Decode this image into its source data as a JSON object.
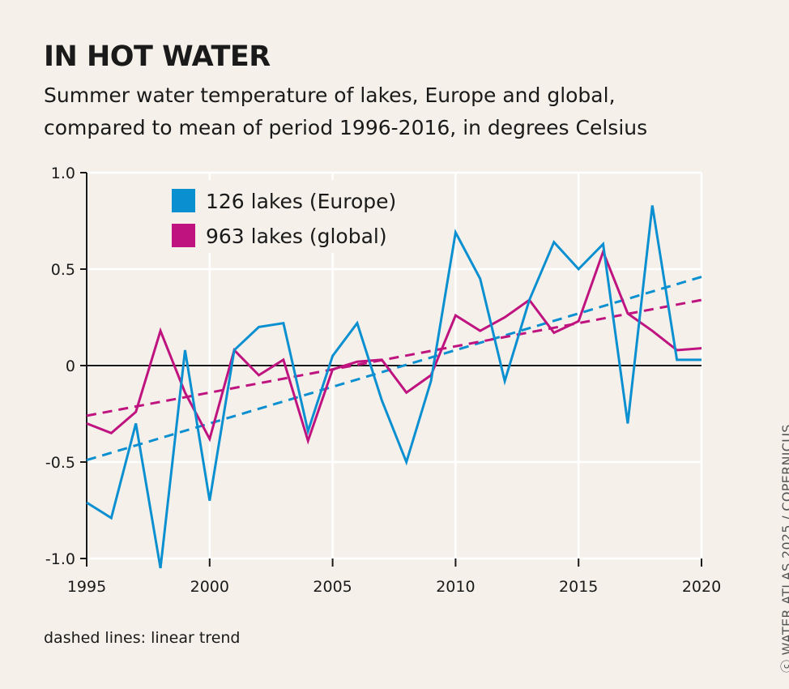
{
  "title": "IN HOT WATER",
  "subtitle_line1": "Summer water temperature of lakes, Europe and global,",
  "subtitle_line2": "compared to mean of period 1996-2016, in degrees Celsius",
  "note": "dashed lines: linear trend",
  "credit": "ⓒ WATER ATLAS 2025 / COPERNICUS",
  "chart_data": {
    "type": "line",
    "title": "IN HOT WATER",
    "xlim": [
      1995,
      2020
    ],
    "ylim": [
      -1.0,
      1.0
    ],
    "x_ticks": [
      "1995",
      "2000",
      "2005",
      "2010",
      "2015",
      "2020"
    ],
    "y_ticks": [
      "1.0",
      "0.5",
      "0",
      "-0.5",
      "-1.0"
    ],
    "grid": true,
    "legend_position": "top-left",
    "x": [
      1995,
      1996,
      1997,
      1998,
      1999,
      2000,
      2001,
      2002,
      2003,
      2004,
      2005,
      2006,
      2007,
      2008,
      2009,
      2010,
      2011,
      2012,
      2013,
      2014,
      2015,
      2016,
      2017,
      2018,
      2019,
      2020
    ],
    "series": [
      {
        "name": "126 lakes (Europe)",
        "color": "#0a8fd0",
        "values": [
          -0.71,
          -0.79,
          -0.3,
          -1.05,
          0.08,
          -0.7,
          0.08,
          0.2,
          0.22,
          -0.34,
          0.05,
          0.22,
          -0.18,
          -0.5,
          -0.08,
          0.69,
          0.45,
          -0.08,
          0.34,
          0.64,
          0.5,
          0.63,
          -0.3,
          0.83,
          0.03,
          0.03
        ],
        "trend": {
          "style": "dashed",
          "from": [
            1995,
            -0.49
          ],
          "to": [
            2020,
            0.46
          ]
        }
      },
      {
        "name": "963 lakes (global)",
        "color": "#bf1380",
        "values": [
          -0.3,
          -0.35,
          -0.24,
          0.18,
          -0.14,
          -0.38,
          0.08,
          -0.05,
          0.03,
          -0.39,
          -0.02,
          0.02,
          0.03,
          -0.14,
          -0.05,
          0.26,
          0.18,
          0.25,
          0.34,
          0.17,
          0.23,
          0.59,
          0.27,
          0.18,
          0.08,
          0.09
        ],
        "trend": {
          "style": "dashed",
          "from": [
            1995,
            -0.26
          ],
          "to": [
            2020,
            0.34
          ]
        }
      }
    ]
  }
}
